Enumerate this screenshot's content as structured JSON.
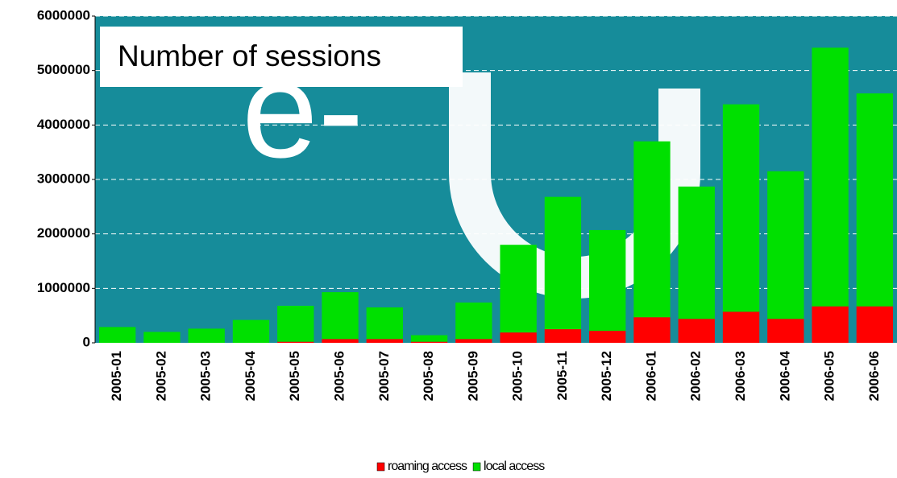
{
  "chart_data": {
    "type": "stacked_bar",
    "title": "Number of sessions",
    "categories": [
      "2005-01",
      "2005-02",
      "2005-03",
      "2005-04",
      "2005-05",
      "2005-06",
      "2005-07",
      "2005-08",
      "2005-09",
      "2005-10",
      "2005-11",
      "2005-12",
      "2006-01",
      "2006-02",
      "2006-03",
      "2006-04",
      "2006-05",
      "2006-06"
    ],
    "series": [
      {
        "name": "roaming access",
        "color": "#ff0000",
        "values": [
          0,
          0,
          0,
          0,
          20000,
          70000,
          70000,
          20000,
          70000,
          190000,
          250000,
          220000,
          470000,
          440000,
          570000,
          440000,
          670000,
          670000
        ]
      },
      {
        "name": "local access",
        "color": "#00e000",
        "values": [
          290000,
          200000,
          260000,
          420000,
          660000,
          860000,
          580000,
          120000,
          670000,
          1610000,
          2430000,
          1850000,
          3230000,
          2430000,
          3810000,
          2710000,
          4750000,
          3910000
        ]
      }
    ],
    "ylim": [
      0,
      6000000
    ],
    "yticks": [
      0,
      1000000,
      2000000,
      3000000,
      4000000,
      5000000,
      6000000
    ],
    "grid": true,
    "legend": "bottom"
  }
}
